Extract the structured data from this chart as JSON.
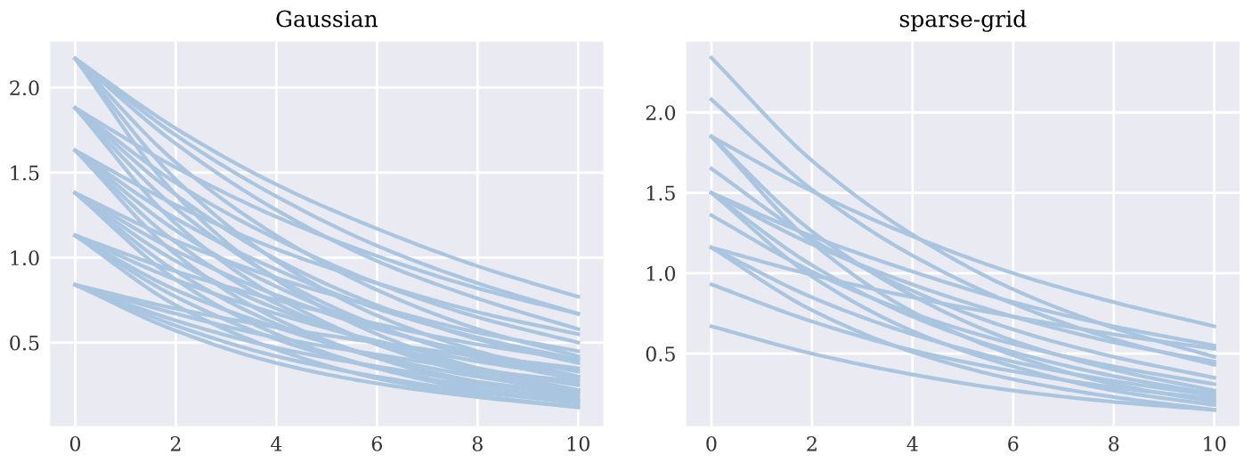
{
  "chart_data": [
    {
      "type": "line",
      "title": "Gaussian",
      "x": [
        0,
        2,
        4,
        6,
        8,
        10
      ],
      "xlim": [
        -0.5,
        10.5
      ],
      "xticks": [
        0,
        2,
        4,
        6,
        8,
        10
      ],
      "ylim": [
        0.01,
        2.27
      ],
      "yticks": [
        {
          "value": 0.5,
          "label": "0.5"
        },
        {
          "value": 1.0,
          "label": "1.0"
        },
        {
          "value": 1.5,
          "label": "1.5"
        },
        {
          "value": 2.0,
          "label": "2.0"
        }
      ],
      "grid": true,
      "series": [
        {
          "color": "#a9c5df",
          "values": [
            2.17,
            1.76,
            1.43,
            1.17,
            0.95,
            0.77
          ]
        },
        {
          "color": "#a9c5df",
          "values": [
            2.17,
            1.72,
            1.36,
            1.07,
            0.85,
            0.67
          ]
        },
        {
          "color": "#a9c5df",
          "values": [
            2.17,
            1.67,
            1.28,
            0.98,
            0.76,
            0.58
          ]
        },
        {
          "color": "#a9c5df",
          "values": [
            2.17,
            1.56,
            1.13,
            0.81,
            0.58,
            0.42
          ]
        },
        {
          "color": "#a9c5df",
          "values": [
            2.17,
            1.46,
            0.98,
            0.66,
            0.45,
            0.3
          ]
        },
        {
          "color": "#a9c5df",
          "values": [
            2.17,
            1.37,
            0.87,
            0.55,
            0.35,
            0.22
          ]
        },
        {
          "color": "#a9c5df",
          "values": [
            1.88,
            1.53,
            1.24,
            1.01,
            0.82,
            0.67
          ]
        },
        {
          "color": "#a9c5df",
          "values": [
            1.88,
            1.44,
            1.11,
            0.85,
            0.65,
            0.5
          ]
        },
        {
          "color": "#a9c5df",
          "values": [
            1.88,
            1.37,
            0.99,
            0.72,
            0.52,
            0.38
          ]
        },
        {
          "color": "#a9c5df",
          "values": [
            1.88,
            1.29,
            0.88,
            0.6,
            0.41,
            0.28
          ]
        },
        {
          "color": "#a9c5df",
          "values": [
            1.88,
            1.2,
            0.77,
            0.49,
            0.31,
            0.2
          ]
        },
        {
          "color": "#a9c5df",
          "values": [
            1.63,
            1.31,
            1.05,
            0.85,
            0.68,
            0.55
          ]
        },
        {
          "color": "#a9c5df",
          "values": [
            1.63,
            1.23,
            0.93,
            0.7,
            0.53,
            0.4
          ]
        },
        {
          "color": "#a9c5df",
          "values": [
            1.63,
            1.16,
            0.83,
            0.59,
            0.42,
            0.3
          ]
        },
        {
          "color": "#a9c5df",
          "values": [
            1.63,
            1.09,
            0.73,
            0.49,
            0.33,
            0.22
          ]
        },
        {
          "color": "#a9c5df",
          "values": [
            1.63,
            1.02,
            0.64,
            0.41,
            0.25,
            0.16
          ]
        },
        {
          "color": "#a9c5df",
          "values": [
            1.38,
            1.1,
            0.88,
            0.71,
            0.56,
            0.45
          ]
        },
        {
          "color": "#a9c5df",
          "values": [
            1.38,
            1.04,
            0.78,
            0.58,
            0.44,
            0.33
          ]
        },
        {
          "color": "#a9c5df",
          "values": [
            1.38,
            0.98,
            0.7,
            0.5,
            0.35,
            0.25
          ]
        },
        {
          "color": "#a9c5df",
          "values": [
            1.38,
            0.92,
            0.61,
            0.41,
            0.27,
            0.18
          ]
        },
        {
          "color": "#a9c5df",
          "values": [
            1.38,
            0.87,
            0.55,
            0.35,
            0.22,
            0.14
          ]
        },
        {
          "color": "#a9c5df",
          "values": [
            1.13,
            0.92,
            0.75,
            0.61,
            0.49,
            0.4
          ]
        },
        {
          "color": "#a9c5df",
          "values": [
            1.13,
            0.87,
            0.67,
            0.51,
            0.39,
            0.3
          ]
        },
        {
          "color": "#a9c5df",
          "values": [
            1.13,
            0.81,
            0.59,
            0.42,
            0.3,
            0.22
          ]
        },
        {
          "color": "#a9c5df",
          "values": [
            1.13,
            0.77,
            0.52,
            0.35,
            0.24,
            0.16
          ]
        },
        {
          "color": "#a9c5df",
          "values": [
            1.13,
            0.72,
            0.46,
            0.29,
            0.19,
            0.12
          ]
        },
        {
          "color": "#a9c5df",
          "values": [
            0.84,
            0.7,
            0.59,
            0.5,
            0.42,
            0.35
          ]
        },
        {
          "color": "#a9c5df",
          "values": [
            0.84,
            0.67,
            0.53,
            0.43,
            0.34,
            0.27
          ]
        },
        {
          "color": "#a9c5df",
          "values": [
            0.84,
            0.63,
            0.47,
            0.36,
            0.27,
            0.2
          ]
        },
        {
          "color": "#a9c5df",
          "values": [
            0.84,
            0.6,
            0.42,
            0.3,
            0.21,
            0.15
          ]
        },
        {
          "color": "#a9c5df",
          "values": [
            0.84,
            0.57,
            0.38,
            0.26,
            0.18,
            0.12
          ]
        }
      ]
    },
    {
      "type": "line",
      "title": "sparse-grid",
      "x": [
        0,
        2,
        4,
        6,
        8,
        10
      ],
      "xlim": [
        -0.5,
        10.5
      ],
      "xticks": [
        0,
        2,
        4,
        6,
        8,
        10
      ],
      "ylim": [
        0.05,
        2.44
      ],
      "yticks": [
        {
          "value": 0.5,
          "label": "0.5"
        },
        {
          "value": 1.0,
          "label": "1.0"
        },
        {
          "value": 1.5,
          "label": "1.5"
        },
        {
          "value": 2.0,
          "label": "2.0"
        }
      ],
      "grid": true,
      "series": [
        {
          "color": "#a9c5df",
          "values": [
            2.34,
            1.7,
            1.24,
            0.9,
            0.66,
            0.48
          ]
        },
        {
          "color": "#a9c5df",
          "values": [
            2.08,
            1.52,
            1.11,
            0.81,
            0.59,
            0.43
          ]
        },
        {
          "color": "#a9c5df",
          "values": [
            1.85,
            1.51,
            1.23,
            1.0,
            0.82,
            0.67
          ]
        },
        {
          "color": "#a9c5df",
          "values": [
            1.85,
            1.26,
            0.86,
            0.58,
            0.4,
            0.27
          ]
        },
        {
          "color": "#a9c5df",
          "values": [
            1.85,
            1.19,
            0.76,
            0.49,
            0.31,
            0.2
          ]
        },
        {
          "color": "#a9c5df",
          "values": [
            1.65,
            1.21,
            0.89,
            0.65,
            0.48,
            0.35
          ]
        },
        {
          "color": "#a9c5df",
          "values": [
            1.5,
            1.23,
            1.01,
            0.82,
            0.67,
            0.55
          ]
        },
        {
          "color": "#a9c5df",
          "values": [
            1.5,
            1.18,
            0.93,
            0.73,
            0.57,
            0.45
          ]
        },
        {
          "color": "#a9c5df",
          "values": [
            1.5,
            1.05,
            0.73,
            0.51,
            0.36,
            0.25
          ]
        },
        {
          "color": "#a9c5df",
          "values": [
            1.5,
            0.98,
            0.64,
            0.42,
            0.27,
            0.18
          ]
        },
        {
          "color": "#a9c5df",
          "values": [
            1.36,
            1.01,
            0.75,
            0.56,
            0.42,
            0.31
          ]
        },
        {
          "color": "#a9c5df",
          "values": [
            1.16,
            0.99,
            0.85,
            0.73,
            0.62,
            0.53
          ]
        },
        {
          "color": "#a9c5df",
          "values": [
            1.16,
            0.85,
            0.62,
            0.45,
            0.33,
            0.24
          ]
        },
        {
          "color": "#a9c5df",
          "values": [
            1.16,
            0.77,
            0.51,
            0.34,
            0.23,
            0.15
          ]
        },
        {
          "color": "#a9c5df",
          "values": [
            0.93,
            0.7,
            0.52,
            0.39,
            0.29,
            0.22
          ]
        },
        {
          "color": "#a9c5df",
          "values": [
            0.67,
            0.5,
            0.37,
            0.27,
            0.2,
            0.15
          ]
        }
      ]
    }
  ]
}
